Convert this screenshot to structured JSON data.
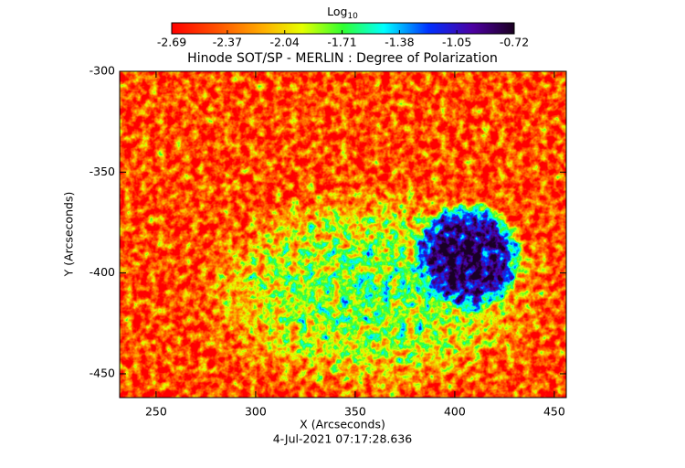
{
  "chart_data": {
    "type": "image",
    "title": "Hinode SOT/SP - MERLIN : Degree of Polarization",
    "x_label": "X (Arcseconds)",
    "y_label": "Y (Arcseconds)",
    "date": "4-Jul-2021 07:17:28.636",
    "xlim": [
      231.7,
      456
    ],
    "xticks": [
      250,
      300,
      350,
      400,
      450
    ],
    "ylim": [
      -461.8,
      -300
    ],
    "yticks": [
      -450,
      -400,
      -350,
      -300
    ],
    "colorbar": {
      "label": "Log",
      "label_sub": "10",
      "lim": [
        -2.69,
        -0.72
      ],
      "ticks": [
        -2.69,
        -2.37,
        -2.04,
        -1.71,
        -1.38,
        -1.05,
        -0.72
      ]
    }
  }
}
